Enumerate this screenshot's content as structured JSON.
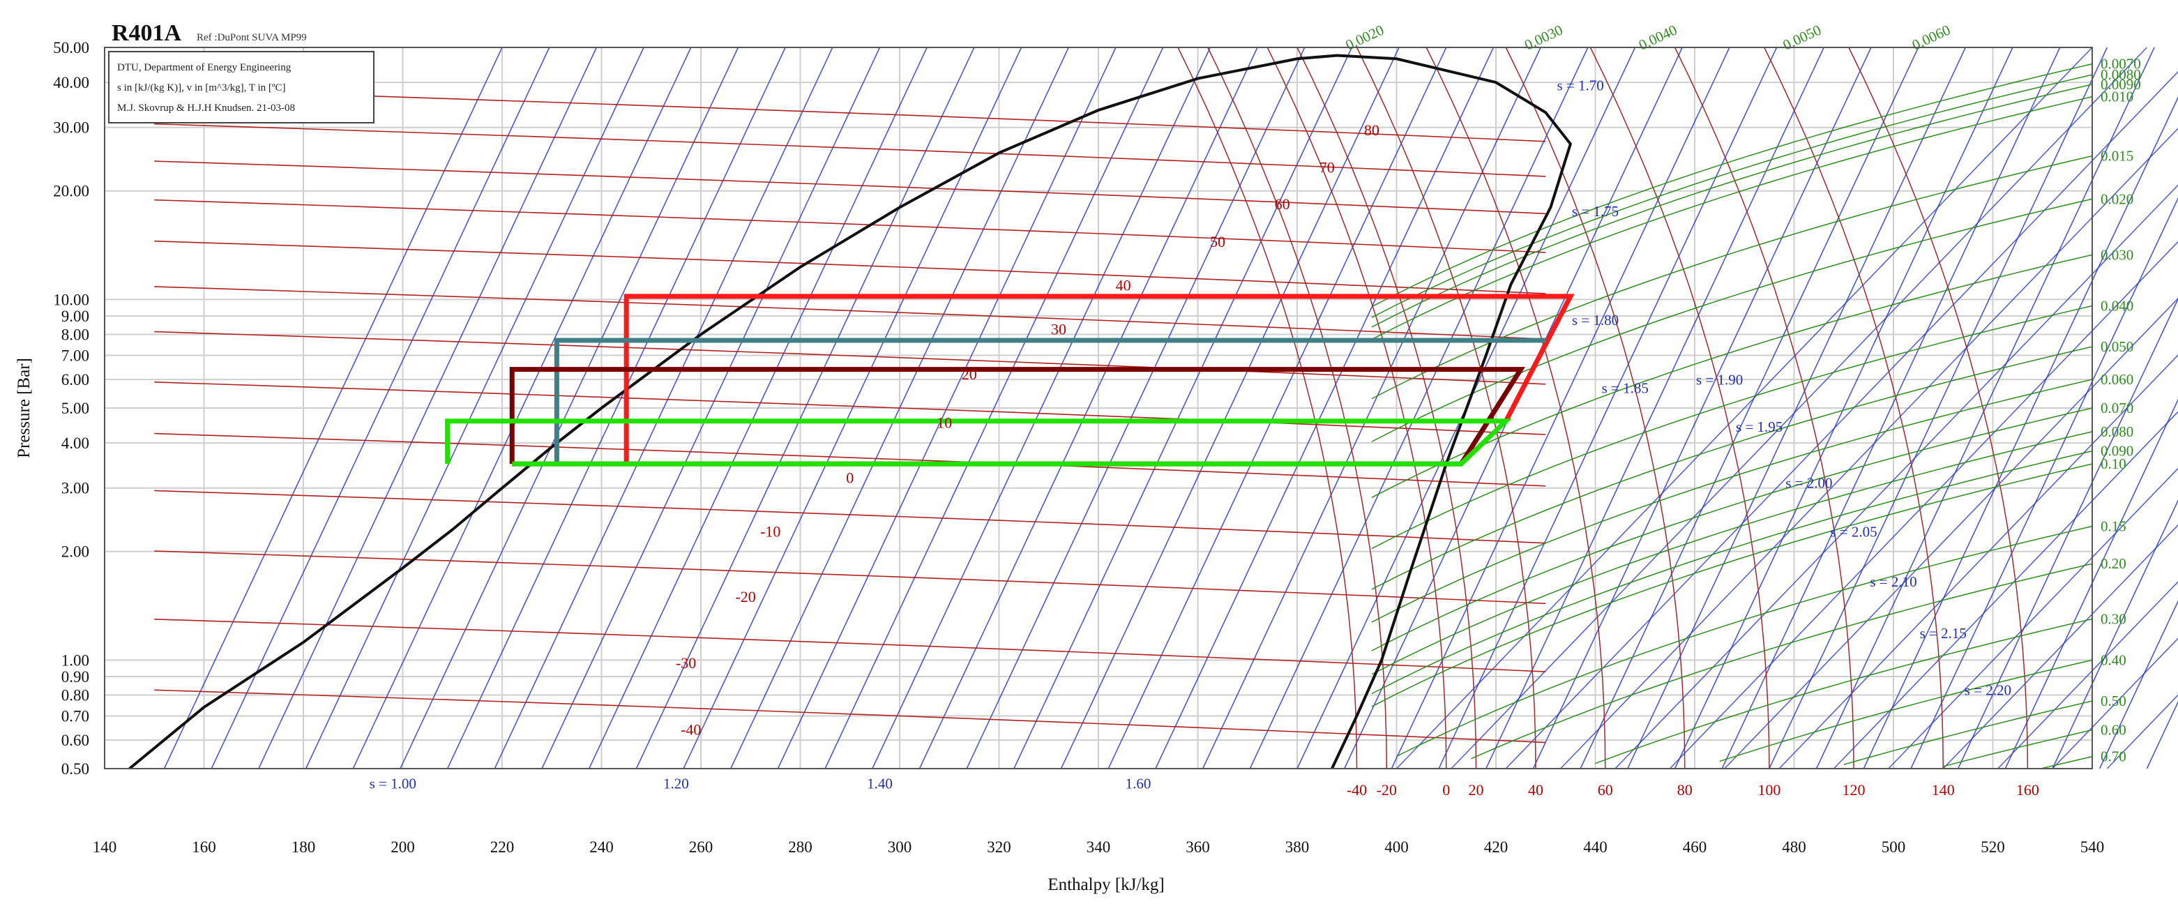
{
  "chart_data": {
    "type": "line",
    "title": "R401A",
    "subtitle": "Ref :DuPont SUVA MP99",
    "info_lines": [
      "DTU, Department of Energy Engineering",
      "s in [kJ/(kg K)], v in [m^3/kg], T in [ºC]",
      "M.J. Skovrup & H.J.H Knudsen. 21-03-08"
    ],
    "xlabel": "Enthalpy [kJ/kg]",
    "ylabel": "Pressure [Bar]",
    "xlim": [
      140,
      540
    ],
    "ylim": [
      0.5,
      50
    ],
    "y_scale": "log",
    "grid": true,
    "x_ticks": [
      "140",
      "160",
      "180",
      "200",
      "220",
      "240",
      "260",
      "280",
      "300",
      "320",
      "340",
      "360",
      "380",
      "400",
      "420",
      "440",
      "460",
      "480",
      "500",
      "520",
      "540"
    ],
    "y_ticks": [
      "0.50",
      "0.60",
      "0.70",
      "0.80",
      "0.90",
      "1.00",
      "2.00",
      "3.00",
      "4.00",
      "5.00",
      "6.00",
      "7.00",
      "8.00",
      "9.00",
      "10.00",
      "20.00",
      "30.00",
      "40.00",
      "50.00"
    ],
    "saturation_dome": {
      "liquid_line": [
        [
          145,
          0.5
        ],
        [
          160,
          0.74
        ],
        [
          180,
          1.12
        ],
        [
          200,
          1.8
        ],
        [
          210,
          2.3
        ],
        [
          220,
          3.0
        ],
        [
          230,
          3.9
        ],
        [
          240,
          5.0
        ],
        [
          260,
          8.0
        ],
        [
          280,
          12.3
        ],
        [
          300,
          18.0
        ],
        [
          320,
          25.5
        ],
        [
          340,
          33.5
        ],
        [
          360,
          41.0
        ],
        [
          380,
          46.5
        ],
        [
          388,
          47.5
        ]
      ],
      "vapor_line": [
        [
          388,
          47.5
        ],
        [
          400,
          46.5
        ],
        [
          420,
          40.0
        ],
        [
          430,
          33.0
        ],
        [
          435,
          27.0
        ],
        [
          431,
          18.0
        ],
        [
          423,
          11.0
        ],
        [
          418,
          7.0
        ],
        [
          410,
          3.5
        ],
        [
          403,
          1.8
        ],
        [
          397,
          1.0
        ],
        [
          392,
          0.7
        ],
        [
          387,
          0.5
        ]
      ]
    },
    "isotherms": [
      {
        "label": "-40",
        "y": 0.7,
        "lx": 258,
        "ly": 0.62
      },
      {
        "label": "-30",
        "y": 1.1,
        "lx": 257,
        "ly": 0.95
      },
      {
        "label": "-20",
        "y": 1.7,
        "lx": 269,
        "ly": 1.45
      },
      {
        "label": "-10",
        "y": 2.5,
        "lx": 274,
        "ly": 2.2
      },
      {
        "label": "0",
        "y": 3.6,
        "lx": 290,
        "ly": 3.1
      },
      {
        "label": "10",
        "y": 5.0,
        "lx": 309,
        "ly": 4.4
      },
      {
        "label": "20",
        "y": 6.9,
        "lx": 314,
        "ly": 6.0
      },
      {
        "label": "30",
        "y": 9.2,
        "lx": 332,
        "ly": 8.0
      },
      {
        "label": "40",
        "y": 12.3,
        "lx": 345,
        "ly": 10.6
      },
      {
        "label": "50",
        "y": 16.0,
        "lx": 364,
        "ly": 14.0
      },
      {
        "label": "60",
        "y": 20.5,
        "lx": 377,
        "ly": 17.8
      },
      {
        "label": "70",
        "y": 26.0,
        "lx": 386,
        "ly": 22.5
      },
      {
        "label": "80",
        "y": 32.5,
        "lx": 395,
        "ly": 28.5
      }
    ],
    "entropy_labels": [
      {
        "label": "s = 1.00",
        "x": 198,
        "y": 0.44
      },
      {
        "label": "1.20",
        "x": 255,
        "y": 0.44
      },
      {
        "label": "1.40",
        "x": 296,
        "y": 0.44
      },
      {
        "label": "1.60",
        "x": 348,
        "y": 0.44
      },
      {
        "label": "s = 1.70",
        "x": 437,
        "y": 38.0
      },
      {
        "label": "s = 1.75",
        "x": 440,
        "y": 17.0
      },
      {
        "label": "s = 1.80",
        "x": 440,
        "y": 8.5
      },
      {
        "label": "s = 1.85",
        "x": 446,
        "y": 5.5
      },
      {
        "label": "s = 1.90",
        "x": 465,
        "y": 5.8
      },
      {
        "label": "s = 1.95",
        "x": 473,
        "y": 4.3
      },
      {
        "label": "s = 2.00",
        "x": 483,
        "y": 3.0
      },
      {
        "label": "s = 2.05",
        "x": 492,
        "y": 2.2
      },
      {
        "label": "s = 2.10",
        "x": 500,
        "y": 1.6
      },
      {
        "label": "s = 2.15",
        "x": 510,
        "y": 1.15
      },
      {
        "label": "s = 2.20",
        "x": 519,
        "y": 0.8
      }
    ],
    "volume_labels_right": [
      "0.0070",
      "0.0080",
      "0.0090",
      "0.010",
      "0.015",
      "0.020",
      "0.030",
      "0.040",
      "0.050",
      "0.060",
      "0.070",
      "0.080",
      "0.090",
      "0.10",
      "0.15",
      "0.20",
      "0.30",
      "0.40",
      "0.50",
      "0.60",
      "0.70"
    ],
    "volume_labels_right_p": [
      45,
      42,
      39.5,
      36.5,
      25,
      19,
      13.3,
      9.6,
      7.4,
      6.0,
      5.0,
      4.3,
      3.8,
      3.5,
      2.35,
      1.85,
      1.3,
      1.0,
      0.77,
      0.64,
      0.54
    ],
    "volume_labels_top": [
      "0.0020",
      "0.0030",
      "0.0040",
      "0.0050",
      "0.0060"
    ],
    "volume_labels_top_h": [
      394,
      430,
      453,
      482,
      508
    ],
    "superheat_temp_labels": [
      "-40",
      "-20",
      "0",
      "20",
      "40",
      "60",
      "80",
      "100",
      "120",
      "140",
      "160"
    ],
    "superheat_temp_labels_h": [
      392,
      398,
      410,
      416,
      428,
      442,
      458,
      475,
      492,
      510,
      527
    ],
    "cycles": [
      {
        "color": "#ff1a1a",
        "points": [
          [
            245,
            3.5
          ],
          [
            245,
            10.2
          ],
          [
            435,
            10.2
          ],
          [
            422,
            4.6
          ]
        ]
      },
      {
        "color": "#3f7f86",
        "points": [
          [
            231,
            3.5
          ],
          [
            231,
            7.7
          ],
          [
            430,
            7.7
          ]
        ]
      },
      {
        "color": "#7a0000",
        "points": [
          [
            222,
            3.5
          ],
          [
            222,
            6.4
          ],
          [
            425,
            6.4
          ],
          [
            413,
            3.5
          ],
          [
            222,
            3.5
          ]
        ]
      },
      {
        "color": "#22e000",
        "points": [
          [
            209,
            3.5
          ],
          [
            209,
            4.6
          ],
          [
            422,
            4.6
          ],
          [
            413,
            3.5
          ],
          [
            222,
            3.5
          ]
        ]
      }
    ]
  }
}
